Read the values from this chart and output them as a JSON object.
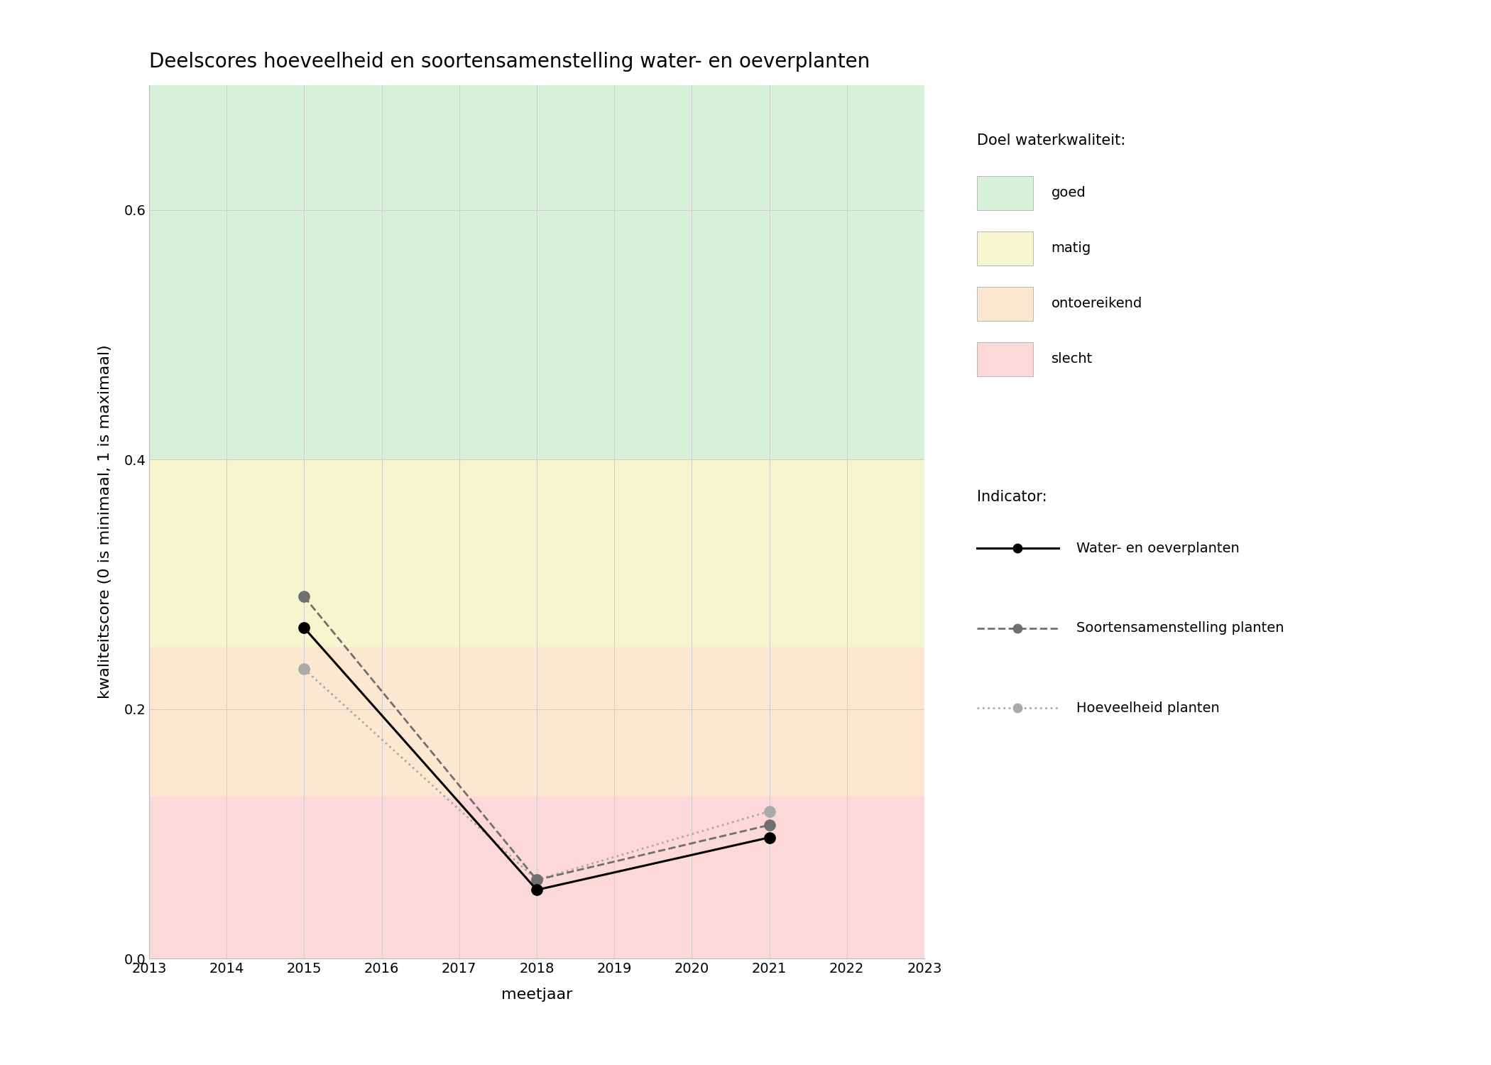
{
  "title": "Deelscores hoeveelheid en soortensamenstelling water- en oeverplanten",
  "xlabel": "meetjaar",
  "ylabel": "kwaliteitscore (0 is minimaal, 1 is maximaal)",
  "xlim": [
    2013,
    2023
  ],
  "ylim": [
    0.0,
    0.7
  ],
  "yticks": [
    0.0,
    0.2,
    0.4,
    0.6
  ],
  "xticks": [
    2013,
    2014,
    2015,
    2016,
    2017,
    2018,
    2019,
    2020,
    2021,
    2022,
    2023
  ],
  "background_color": "#ffffff",
  "quality_bands": [
    {
      "name": "goed",
      "ymin": 0.4,
      "ymax": 0.7,
      "color": "#d8f0d8"
    },
    {
      "name": "matig",
      "ymin": 0.25,
      "ymax": 0.4,
      "color": "#f5f5ce"
    },
    {
      "name": "ontoereikend",
      "ymin": 0.13,
      "ymax": 0.25,
      "color": "#fce8d0"
    },
    {
      "name": "slecht",
      "ymin": 0.0,
      "ymax": 0.13,
      "color": "#fcd8d8"
    }
  ],
  "series": {
    "water_oeverplanten": {
      "years": [
        2015,
        2018,
        2021
      ],
      "values": [
        0.265,
        0.055,
        0.097
      ],
      "color": "#000000",
      "linestyle": "-",
      "linewidth": 2.2,
      "marker": "o",
      "markersize": 11,
      "label": "Water- en oeverplanten",
      "zorder": 5
    },
    "soortensamenstelling": {
      "years": [
        2015,
        2018,
        2021
      ],
      "values": [
        0.29,
        0.063,
        0.107
      ],
      "color": "#707070",
      "linestyle": "--",
      "linewidth": 2.0,
      "marker": "o",
      "markersize": 11,
      "label": "Soortensamenstelling planten",
      "zorder": 4
    },
    "hoeveelheid": {
      "years": [
        2015,
        2018,
        2021
      ],
      "values": [
        0.232,
        0.063,
        0.118
      ],
      "color": "#aaaaaa",
      "linestyle": ":",
      "linewidth": 2.0,
      "marker": "o",
      "markersize": 11,
      "label": "Hoeveelheid planten",
      "zorder": 3
    }
  },
  "legend_quality": [
    {
      "label": "goed",
      "color": "#d8f0d8"
    },
    {
      "label": "matig",
      "color": "#f5f5ce"
    },
    {
      "label": "ontoereikend",
      "color": "#fce8d0"
    },
    {
      "label": "slecht",
      "color": "#fcd8d8"
    }
  ],
  "legend_title_quality": "Doel waterkwaliteit:",
  "legend_title_indicator": "Indicator:",
  "grid_color": "#d0d0d0",
  "grid_linewidth": 0.8,
  "title_fontsize": 20,
  "axis_label_fontsize": 16,
  "tick_fontsize": 14,
  "legend_fontsize": 14,
  "legend_title_fontsize": 15
}
